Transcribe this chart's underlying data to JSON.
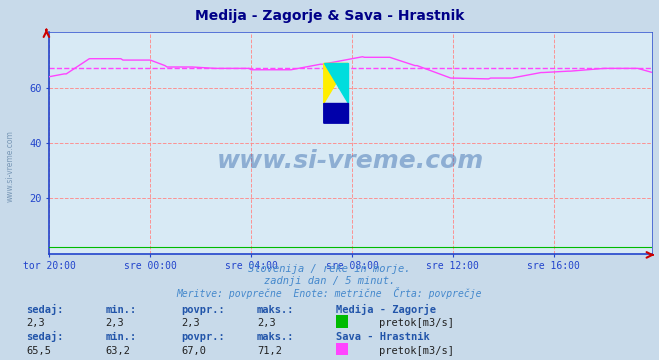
{
  "title": "Medija - Zagorje & Sava - Hrastnik",
  "background_color": "#c8daea",
  "plot_bg_color": "#d8eaf5",
  "grid_color": "#ff8888",
  "grid_style": "--",
  "x_labels": [
    "tor 20:00",
    "sre 00:00",
    "sre 04:00",
    "sre 08:00",
    "sre 12:00",
    "sre 16:00"
  ],
  "x_ticks_pos": [
    0,
    48,
    96,
    144,
    192,
    240
  ],
  "ylim": [
    0,
    80
  ],
  "yticks": [
    20,
    40,
    60
  ],
  "total_points": 288,
  "avg_line_value": 67.0,
  "avg_line_color": "#ff44ff",
  "avg_line_style": "--",
  "series1_color": "#00bb00",
  "series1_value": 2.3,
  "series2_color": "#ff44ff",
  "series2_label": "Sava - Hrastnik",
  "series1_label": "Medija - Zagorje",
  "watermark": "www.si-vreme.com",
  "subtitle1": "Slovenija / reke in morje.",
  "subtitle2": "zadnji dan / 5 minut.",
  "subtitle3": "Meritve: povprečne  Enote: metrične  Črta: povprečje",
  "text_color": "#4488cc",
  "title_color": "#000088",
  "axis_color": "#2244cc",
  "footer_label_color": "#2255aa",
  "sedaj_label": "sedaj:",
  "min_label": "min.:",
  "povpr_label": "povpr.:",
  "maks_label": "maks.:",
  "s1_sedaj": "2,3",
  "s1_min": "2,3",
  "s1_povpr": "2,3",
  "s1_maks": "2,3",
  "s1_unit": "pretok[m3/s]",
  "s2_sedaj": "65,5",
  "s2_min": "63,2",
  "s2_povpr": "67,0",
  "s2_maks": "71,2",
  "s2_unit": "pretok[m3/s]"
}
